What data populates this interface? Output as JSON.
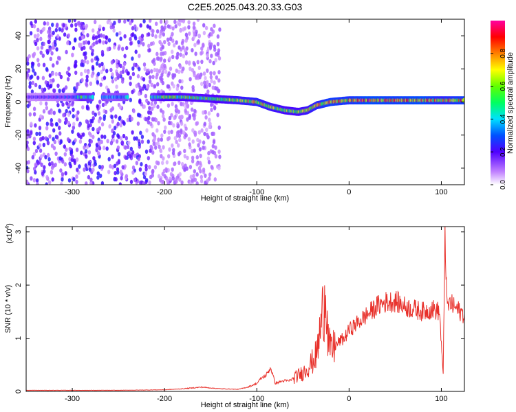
{
  "title": "C2E5.2025.043.20.33.G03",
  "chart_data": [
    {
      "type": "heatmap",
      "xlabel": "Height of straight line (km)",
      "ylabel": "Frequency (Hz)",
      "xlim": [
        -350,
        125
      ],
      "ylim": [
        -50,
        50
      ],
      "xticks": [
        -300,
        -200,
        -100,
        0,
        100
      ],
      "yticks": [
        -40,
        -20,
        0,
        20,
        40
      ],
      "colorbar": {
        "label": "Normalized spectral amplitude",
        "range": [
          0,
          1
        ],
        "ticks": [
          0.0,
          0.2,
          0.4,
          0.6,
          0.8
        ],
        "tick_labels": [
          "0.0",
          "0.2",
          "0.4",
          "0.6",
          "0.8"
        ],
        "colormap": "rainbow (white-violet-blue-cyan-green-yellow-red-magenta)"
      },
      "noise_region": {
        "x_range": [
          -350,
          -140
        ],
        "freq_range": [
          -50,
          50
        ],
        "amplitude": [
          0.05,
          0.25
        ]
      },
      "ridge": [
        {
          "x": -350,
          "f": 3,
          "amp": 0.2
        },
        {
          "x": -300,
          "f": 3,
          "amp": 0.25
        },
        {
          "x": -290,
          "f": 3,
          "amp": 0.5
        },
        {
          "x": -260,
          "f": 3,
          "amp": 0.35
        },
        {
          "x": -210,
          "f": 3,
          "amp": 0.45
        },
        {
          "x": -200,
          "f": 3,
          "amp": 0.6
        },
        {
          "x": -180,
          "f": 3,
          "amp": 0.55
        },
        {
          "x": -150,
          "f": 2,
          "amp": 0.55
        },
        {
          "x": -120,
          "f": 1,
          "amp": 0.65
        },
        {
          "x": -100,
          "f": 0,
          "amp": 0.7
        },
        {
          "x": -85,
          "f": -3,
          "amp": 0.65
        },
        {
          "x": -70,
          "f": -5,
          "amp": 0.6
        },
        {
          "x": -55,
          "f": -6,
          "amp": 0.6
        },
        {
          "x": -45,
          "f": -5,
          "amp": 0.65
        },
        {
          "x": -35,
          "f": -2,
          "amp": 0.7
        },
        {
          "x": -20,
          "f": 0,
          "amp": 0.8
        },
        {
          "x": 0,
          "f": 1,
          "amp": 0.75
        },
        {
          "x": 20,
          "f": 1,
          "amp": 0.85
        },
        {
          "x": 50,
          "f": 1,
          "amp": 0.8
        },
        {
          "x": 80,
          "f": 1,
          "amp": 0.85
        },
        {
          "x": 100,
          "f": 1,
          "amp": 0.7
        },
        {
          "x": 125,
          "f": 1,
          "amp": 0.8
        }
      ]
    },
    {
      "type": "line",
      "xlabel": "Height of straight line (km)",
      "ylabel": "SNR (10 * v/v)",
      "y_multiplier_label": "(x10",
      "y_multiplier_exp": "4",
      "y_multiplier_close": ")",
      "xlim": [
        -350,
        125
      ],
      "ylim": [
        0,
        3.1
      ],
      "xticks": [
        -300,
        -200,
        -100,
        0,
        100
      ],
      "yticks": [
        0,
        1,
        2,
        3
      ],
      "series": [
        {
          "color": "#e8302a",
          "x": [
            -350,
            -300,
            -250,
            -200,
            -180,
            -160,
            -140,
            -120,
            -110,
            -100,
            -95,
            -90,
            -85,
            -80,
            -75,
            -70,
            -65,
            -60,
            -55,
            -50,
            -45,
            -40,
            -35,
            -30,
            -27,
            -25,
            -23,
            -20,
            -15,
            -10,
            -5,
            0,
            10,
            20,
            30,
            40,
            50,
            60,
            70,
            80,
            90,
            98,
            102,
            104,
            106,
            110,
            120,
            125
          ],
          "y": [
            0.02,
            0.02,
            0.02,
            0.03,
            0.05,
            0.08,
            0.05,
            0.04,
            0.08,
            0.15,
            0.25,
            0.3,
            0.45,
            0.15,
            0.18,
            0.2,
            0.2,
            0.25,
            0.3,
            0.35,
            0.45,
            0.55,
            0.7,
            1.3,
            1.7,
            2.1,
            1.0,
            0.75,
            0.85,
            0.95,
            1.0,
            1.15,
            1.3,
            1.45,
            1.6,
            1.68,
            1.7,
            1.6,
            1.55,
            1.5,
            1.55,
            1.5,
            0.3,
            3.1,
            1.6,
            1.65,
            1.5,
            1.45
          ]
        }
      ]
    }
  ]
}
